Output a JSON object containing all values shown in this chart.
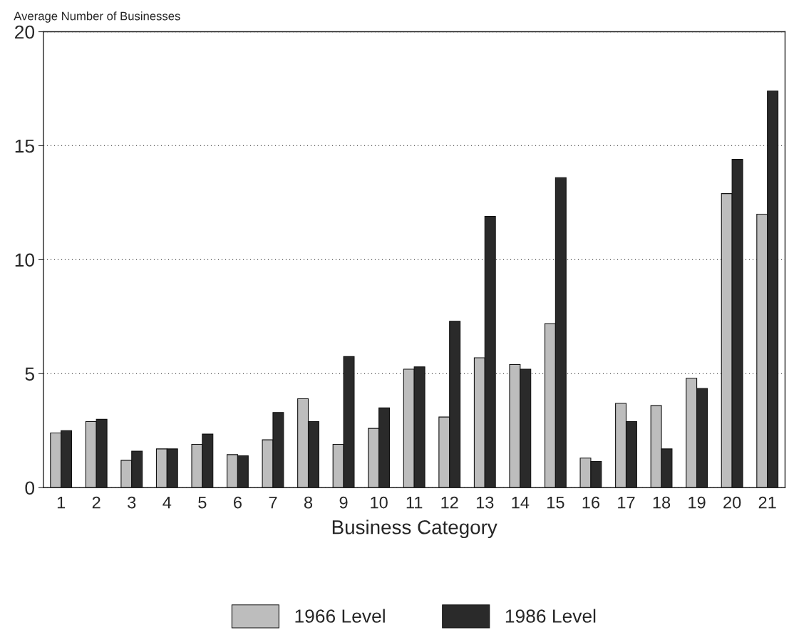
{
  "chart_data": {
    "type": "bar",
    "ylabel": "Average Number of Businesses",
    "xlabel": "Business Category",
    "categories": [
      "1",
      "2",
      "3",
      "4",
      "5",
      "6",
      "7",
      "8",
      "9",
      "10",
      "11",
      "12",
      "13",
      "14",
      "15",
      "16",
      "17",
      "18",
      "19",
      "20",
      "21"
    ],
    "series": [
      {
        "name": "1966 Level",
        "color": "#bdbdbd",
        "values": [
          2.4,
          2.9,
          1.2,
          1.7,
          1.9,
          1.45,
          2.1,
          3.9,
          1.9,
          2.6,
          5.2,
          3.1,
          5.7,
          5.4,
          7.2,
          1.3,
          3.7,
          3.6,
          4.8,
          12.9,
          12.0
        ]
      },
      {
        "name": "1986 Level",
        "color": "#2a2a2a",
        "values": [
          2.5,
          3.0,
          1.6,
          1.7,
          2.35,
          1.4,
          3.3,
          2.9,
          5.75,
          3.5,
          5.3,
          7.3,
          11.9,
          5.2,
          13.6,
          1.15,
          2.9,
          1.7,
          4.35,
          14.4,
          17.4
        ]
      }
    ],
    "ylim": [
      0,
      20
    ],
    "yticks": [
      0,
      5,
      10,
      15,
      20
    ],
    "grid": "y",
    "legend": "bottom"
  }
}
